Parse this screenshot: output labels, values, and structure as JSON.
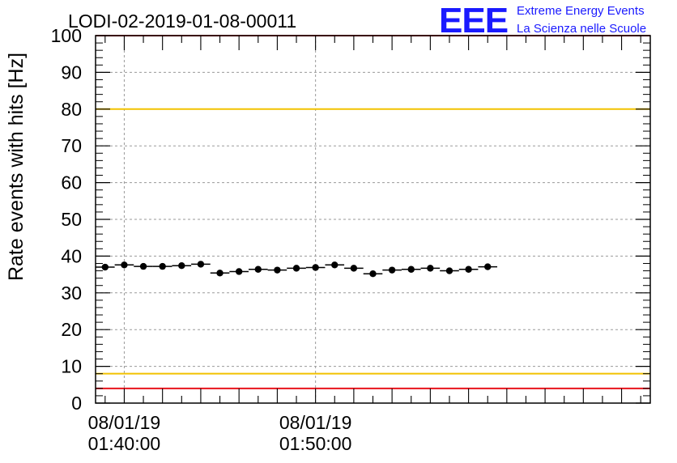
{
  "header": {
    "run_title": "LODI-02-2019-01-08-00011",
    "logo_mark": "EEE",
    "logo_line1": "Extreme Energy Events",
    "logo_line2": "La Scienza nelle Scuole"
  },
  "colors": {
    "limit_red": "#e8141c",
    "limit_yellow": "#f2c200",
    "logo_blue": "#1a1aff",
    "points": "#000000",
    "grid": "#9a9a9a"
  },
  "chart_data": {
    "type": "scatter",
    "title": "LODI-02-2019-01-08-00011",
    "ylabel": "Rate events with hits [Hz]",
    "xlabel": "",
    "ylim": [
      0,
      100
    ],
    "xlim_minutes_after_01_38_30": [
      0,
      29
    ],
    "y_ticks": [
      "0",
      "10",
      "20",
      "30",
      "40",
      "50",
      "60",
      "70",
      "80",
      "90",
      "100"
    ],
    "x_ticks": [
      {
        "value": 1.5,
        "date": "08/01/19",
        "time": "01:40:00"
      },
      {
        "value": 11.5,
        "date": "08/01/19",
        "time": "01:50:00"
      }
    ],
    "reference_lines": [
      {
        "value": 100,
        "color": "red"
      },
      {
        "value": 80,
        "color": "yellow"
      },
      {
        "value": 8,
        "color": "yellow"
      },
      {
        "value": 4,
        "color": "red"
      }
    ],
    "bin_width_minutes": 1,
    "series": [
      {
        "x": [
          0.5,
          1.5,
          2.5,
          3.5,
          4.5,
          5.5,
          6.5,
          7.5,
          8.5,
          9.5,
          10.5,
          11.5,
          12.5,
          13.5,
          14.5,
          15.5,
          16.5,
          17.5,
          18.5,
          19.5,
          20.5,
          21.5,
          22.5,
          23.5,
          24.5,
          25.5,
          26.5,
          27.5,
          28.5
        ],
        "y": [
          37.0,
          37.6,
          37.2,
          37.2,
          37.4,
          37.8,
          35.4,
          35.8,
          36.4,
          36.2,
          36.7,
          36.9,
          37.6,
          36.7,
          35.2,
          36.2,
          36.4,
          36.7,
          36.0,
          36.4,
          37.1,
          null,
          null,
          null,
          null,
          null,
          null,
          null,
          null
        ]
      }
    ]
  }
}
